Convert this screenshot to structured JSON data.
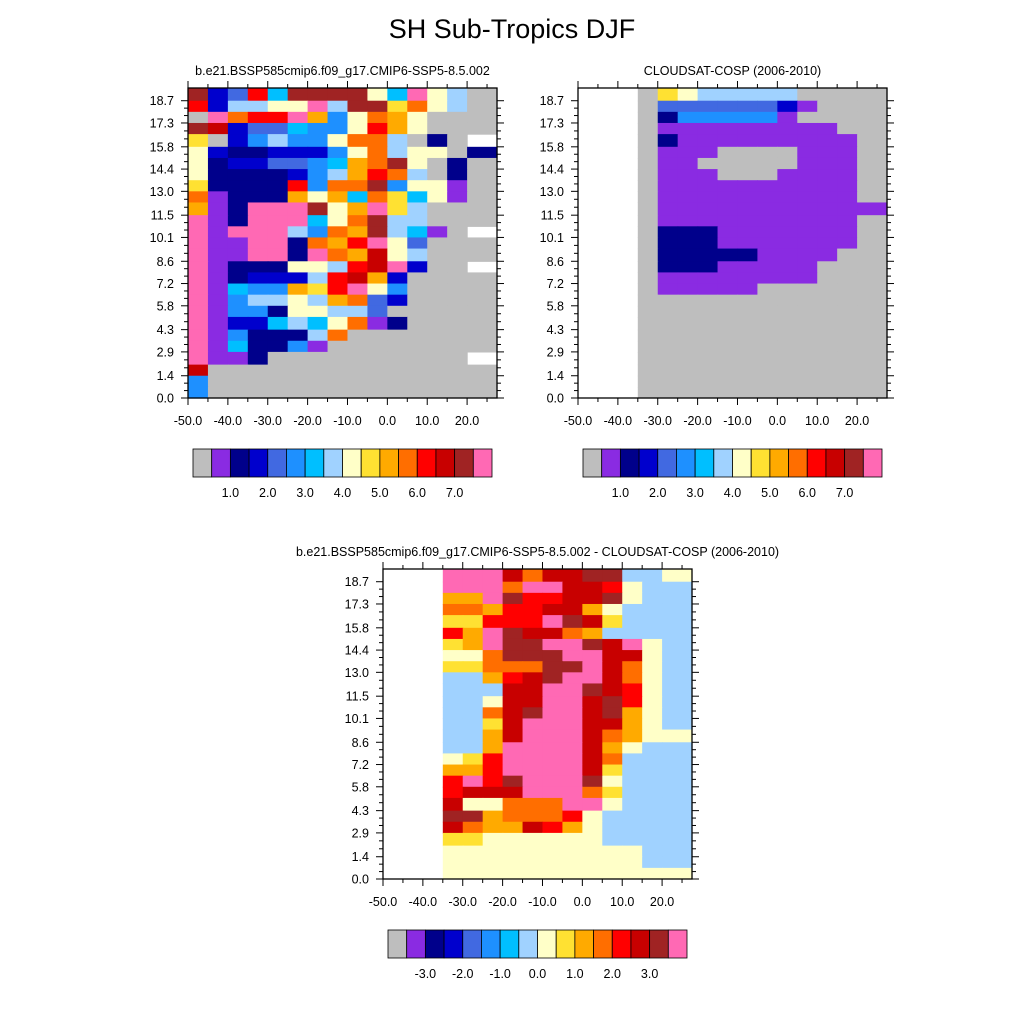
{
  "figure": {
    "title": "SH Sub-Tropics DJF"
  },
  "colors": {
    "missing": "#bebebe",
    "palette": [
      "#bebebe",
      "#8a2be2",
      "#00008b",
      "#0000cd",
      "#4169e1",
      "#1e90ff",
      "#00bfff",
      "#a0d2ff",
      "#ffffc8",
      "#ffe132",
      "#ffaa00",
      "#ff6e00",
      "#ff0000",
      "#c80000",
      "#a02323",
      "#ff69b4"
    ]
  },
  "chart_data": [
    {
      "type": "heatmap",
      "title": "b.e21.BSSP585cmip6.f09_g17.CMIP6-SSP5-8.5.002",
      "x_ticks": [
        "-50.0",
        "-40.0",
        "-30.0",
        "-20.0",
        "-10.0",
        "0.0",
        "10.0",
        "20.0"
      ],
      "y_ticks": [
        "0.0",
        "1.4",
        "2.9",
        "4.3",
        "5.8",
        "7.2",
        "8.6",
        "10.1",
        "11.5",
        "13.0",
        "14.4",
        "15.8",
        "17.3",
        "18.7"
      ],
      "xlim": [
        -50,
        27.5
      ],
      "ylim": [
        0,
        19.5
      ],
      "colorbar_labels": [
        "1.0",
        "2.0",
        "3.0",
        "4.0",
        "5.0",
        "6.0",
        "7.0"
      ],
      "colorbar_levels": [
        0.5,
        1,
        1.5,
        2,
        2.5,
        3,
        3.5,
        4,
        4.5,
        5,
        5.5,
        6,
        6.5,
        7,
        7.5
      ],
      "x_edges": [
        -50,
        -45,
        -40,
        -35,
        -30,
        -25,
        -20,
        -15,
        -10,
        -5,
        0,
        5,
        10,
        15,
        20,
        27.5
      ],
      "y_edges": [
        0,
        0.7,
        1.4,
        2.1,
        2.9,
        3.6,
        4.3,
        5.1,
        5.8,
        6.5,
        7.2,
        7.9,
        8.6,
        9.4,
        10.1,
        10.8,
        11.5,
        12.3,
        13,
        13.7,
        14.4,
        15.1,
        15.8,
        16.6,
        17.3,
        18,
        18.7,
        19.5
      ],
      "grid": [
        "E34C6EEEE86F8700",
        "C37788F7EE9B8700",
        "0FBCCFA58BA8000",
        "ED3446558CA8000",
        "90357558BB7020",
        "832233358B788020",
        "82334456ABE8020",
        "82222357ACB7020",
        "92222C5BBE58810",
        "B1222A8A6B96810",
        "A12FFFE8AF97000",
        "F12FFF68BE77000",
        "F1FFF75BAE7610",
        "F11FF2BACF84000",
        "F11FF2FBAD87000",
        "F1222887CDF300",
        "F123337CDA30000",
        "F1655A9CF8500000",
        "F157787AB4300000",
        "F1552887740000000",
        "F1336768B120000",
        "F152227B0000000",
        "F16225100000000",
        "F1120000000000",
        "D0000000000000000",
        "5000000000000000",
        "500000000000000"
      ]
    },
    {
      "type": "heatmap",
      "title": "CLOUDSAT-COSP (2006-2010)",
      "x_ticks": [
        "-50.0",
        "-40.0",
        "-30.0",
        "-20.0",
        "-10.0",
        "0.0",
        "10.0",
        "20.0"
      ],
      "y_ticks": [
        "0.0",
        "1.4",
        "2.9",
        "4.3",
        "5.8",
        "7.2",
        "8.6",
        "10.1",
        "11.5",
        "13.0",
        "14.4",
        "15.8",
        "17.3",
        "18.7"
      ],
      "xlim": [
        -50,
        27.5
      ],
      "ylim": [
        0,
        19.5
      ],
      "colorbar_labels": [
        "1.0",
        "2.0",
        "3.0",
        "4.0",
        "5.0",
        "6.0",
        "7.0"
      ],
      "colorbar_levels": [
        0.5,
        1,
        1.5,
        2,
        2.5,
        3,
        3.5,
        4,
        4.5,
        5,
        5.5,
        6,
        6.5,
        7,
        7.5
      ],
      "x_edges": [
        -50,
        -45,
        -40,
        -35,
        -30,
        -25,
        -20,
        -15,
        -10,
        -5,
        0,
        5,
        10,
        15,
        20,
        27.5
      ],
      "y_edges": [
        0,
        0.7,
        1.4,
        2.1,
        2.9,
        3.6,
        4.3,
        5.1,
        5.8,
        6.5,
        7.2,
        7.9,
        8.6,
        9.4,
        10.1,
        10.8,
        11.5,
        12.3,
        13,
        13.7,
        14.4,
        15.1,
        15.8,
        16.6,
        17.3,
        18,
        18.7,
        19.5
      ],
      "grid": [
        "...-9877777-----",
        "...-44444431----",
        "...-2555551-----",
        "...-111111111-----",
        "...-2111111111-----",
        "...-1110000111-----",
        "...-1100000111-----",
        "...-1110001111-----",
        "...-1111111111-----",
        "...-1111111111-----",
        "...-11111111111----",
        "...-1111111111-----",
        "...-2221111111-----",
        "...-2221111111-----",
        "...-222221111-----",
        "...-22211111------",
        "...-11111111------",
        "...-11111-------",
        "...-------------",
        "...-------------",
        "...-------------",
        "...-------------",
        "...-------------",
        "...-------------",
        "...-------------",
        "...-------------",
        "...-------------"
      ]
    },
    {
      "type": "heatmap",
      "title": "b.e21.BSSP585cmip6.f09_g17.CMIP6-SSP5-8.5.002 - CLOUDSAT-COSP (2006-2010)",
      "x_ticks": [
        "-50.0",
        "-40.0",
        "-30.0",
        "-20.0",
        "-10.0",
        "0.0",
        "10.0",
        "20.0"
      ],
      "y_ticks": [
        "0.0",
        "1.4",
        "2.9",
        "4.3",
        "5.8",
        "7.2",
        "8.6",
        "10.1",
        "11.5",
        "13.0",
        "14.4",
        "15.8",
        "17.3",
        "18.7"
      ],
      "xlim": [
        -50,
        27.5
      ],
      "ylim": [
        0,
        19.5
      ],
      "colorbar_labels": [
        "-3.0",
        "-2.0",
        "-1.0",
        "0.0",
        "1.0",
        "2.0",
        "3.0"
      ],
      "colorbar_levels": [
        -3.5,
        -3,
        -2.5,
        -2,
        -1.5,
        -1,
        -0.5,
        0,
        0.5,
        1,
        1.5,
        2,
        2.5,
        3,
        3.5
      ],
      "x_edges": [
        -50,
        -45,
        -40,
        -35,
        -30,
        -25,
        -20,
        -15,
        -10,
        -5,
        0,
        5,
        10,
        15,
        20,
        27.5
      ],
      "y_edges": [
        0,
        0.7,
        1.4,
        2.1,
        2.9,
        3.6,
        4.3,
        5.1,
        5.8,
        6.5,
        7.2,
        7.9,
        8.6,
        9.4,
        10.1,
        10.8,
        11.5,
        12.3,
        13,
        13.7,
        14.4,
        15.1,
        15.8,
        16.6,
        17.3,
        18,
        18.7,
        19.5
      ],
      "grid": [
        "...FFFDBDDEE778-",
        "...FFFBFFDDC8777",
        "...AAFECCDDE8777",
        "...BBACCDDA87777",
        "...99CCCFED97777",
        "...CAFEDDBA77777",
        "...9AFEEFFEDF877",
        "...88BEEEFFDD877",
        "...99BBBEEFDB877",
        "...77ACDEFFDB877",
        "...777DDFFEDC877",
        "...778DDFFDEC877",
        "...77BDEFFDEA877",
        "...779DFFFDDA877",
        "...77ADFFFDBA888",
        "...77AFFFFDA8777",
        "...89CFFFFDB7778",
        "...AACFFFFD97778",
        "...CFCEFFFE87778",
        "...CDDDFFFB977777",
        "...D88BBBFF8777777",
        "...EEABBBC87777788",
        "...DBAADCA87777788",
        "...9988888877777788",
        "...8888888888777788",
        "...8888888888777888",
        "...8888888888888888"
      ]
    }
  ]
}
